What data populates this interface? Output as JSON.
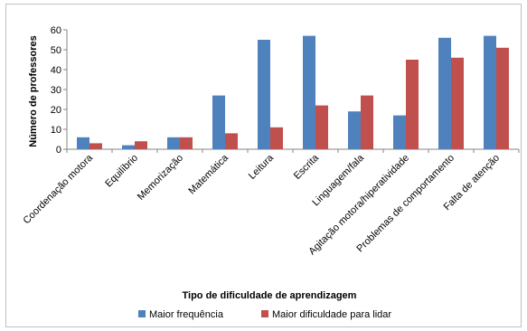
{
  "chart_data": {
    "type": "bar",
    "categories": [
      "Coordenação motora",
      "Equilíbrio",
      "Memorização",
      "Matemática",
      "Leitura",
      "Escrita",
      "Linguagem/fala",
      "Agitação motora/hiperatividade",
      "Problemas de comportamento",
      "Falta de atenção"
    ],
    "series": [
      {
        "name": "Maior frequência",
        "color": "#4f81bd",
        "values": [
          6,
          2,
          6,
          27,
          55,
          57,
          19,
          17,
          56,
          57
        ]
      },
      {
        "name": "Maior dificuldade para lidar",
        "color": "#c0504d",
        "values": [
          3,
          4,
          6,
          8,
          11,
          22,
          27,
          45,
          46,
          51
        ]
      }
    ],
    "title": "",
    "xlabel": "Tipo de dificuldade de aprendizagem",
    "ylabel": "Número de professores",
    "ylim": [
      0,
      60
    ],
    "yticks": [
      "0",
      "10",
      "20",
      "30",
      "40",
      "50",
      "60"
    ],
    "grid": false,
    "legend_position": "bottom"
  }
}
